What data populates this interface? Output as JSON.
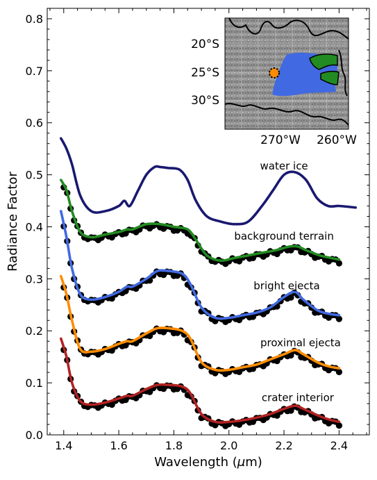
{
  "chart_data": {
    "type": "line",
    "xlabel_main": "Wavelength (",
    "xlabel_mu": "μ",
    "xlabel_unit": "m)",
    "ylabel": "Radiance Factor",
    "xlim": [
      1.34,
      2.51
    ],
    "ylim": [
      0.0,
      0.82
    ],
    "x_ticks": [
      "1.4",
      "1.6",
      "1.8",
      "2.0",
      "2.2",
      "2.4"
    ],
    "y_ticks": [
      "0.0",
      "0.1",
      "0.2",
      "0.3",
      "0.4",
      "0.5",
      "0.6",
      "0.7",
      "0.8"
    ],
    "grid": false,
    "series": [
      {
        "name": "water ice",
        "color": "#191970",
        "label_x": 2.2,
        "label_y": 0.51,
        "has_points": false,
        "x": [
          1.39,
          1.41,
          1.43,
          1.46,
          1.5,
          1.55,
          1.6,
          1.62,
          1.64,
          1.67,
          1.7,
          1.73,
          1.75,
          1.78,
          1.82,
          1.85,
          1.88,
          1.92,
          1.97,
          2.02,
          2.07,
          2.12,
          2.16,
          2.2,
          2.24,
          2.28,
          2.32,
          2.36,
          2.4,
          2.46
        ],
        "y": [
          0.57,
          0.55,
          0.52,
          0.46,
          0.43,
          0.43,
          0.44,
          0.45,
          0.44,
          0.47,
          0.5,
          0.515,
          0.515,
          0.513,
          0.51,
          0.49,
          0.45,
          0.42,
          0.41,
          0.405,
          0.41,
          0.44,
          0.47,
          0.5,
          0.505,
          0.49,
          0.455,
          0.44,
          0.44,
          0.437
        ]
      },
      {
        "name": "background terrain",
        "color": "#228b22",
        "label_x": 2.2,
        "label_y": 0.375,
        "has_points": true,
        "x": [
          1.39,
          1.41,
          1.43,
          1.46,
          1.5,
          1.55,
          1.6,
          1.63,
          1.65,
          1.7,
          1.75,
          1.8,
          1.85,
          1.88,
          1.92,
          1.97,
          2.02,
          2.07,
          2.12,
          2.17,
          2.22,
          2.25,
          2.28,
          2.33,
          2.37,
          2.4
        ],
        "y": [
          0.49,
          0.47,
          0.43,
          0.39,
          0.38,
          0.385,
          0.39,
          0.395,
          0.395,
          0.405,
          0.405,
          0.4,
          0.395,
          0.375,
          0.345,
          0.335,
          0.34,
          0.345,
          0.35,
          0.355,
          0.362,
          0.362,
          0.355,
          0.345,
          0.34,
          0.337
        ]
      },
      {
        "name": "bright ejecta",
        "color": "#4169e1",
        "label_x": 2.21,
        "label_y": 0.28,
        "has_points": true,
        "x": [
          1.39,
          1.41,
          1.43,
          1.46,
          1.5,
          1.55,
          1.6,
          1.63,
          1.65,
          1.7,
          1.74,
          1.78,
          1.83,
          1.86,
          1.9,
          1.95,
          2.0,
          2.05,
          2.1,
          2.15,
          2.2,
          2.24,
          2.27,
          2.32,
          2.36,
          2.4
        ],
        "y": [
          0.43,
          0.38,
          0.32,
          0.27,
          0.26,
          0.265,
          0.275,
          0.285,
          0.285,
          0.3,
          0.315,
          0.315,
          0.31,
          0.29,
          0.245,
          0.225,
          0.225,
          0.23,
          0.235,
          0.245,
          0.265,
          0.275,
          0.26,
          0.24,
          0.233,
          0.23
        ]
      },
      {
        "name": "proximal ejecta",
        "color": "#ff8c00",
        "label_x": 2.26,
        "label_y": 0.17,
        "has_points": true,
        "x": [
          1.39,
          1.41,
          1.43,
          1.46,
          1.5,
          1.55,
          1.6,
          1.63,
          1.65,
          1.7,
          1.74,
          1.78,
          1.83,
          1.86,
          1.9,
          1.95,
          2.0,
          2.05,
          2.1,
          2.15,
          2.2,
          2.24,
          2.27,
          2.32,
          2.36,
          2.4
        ],
        "y": [
          0.305,
          0.27,
          0.22,
          0.165,
          0.16,
          0.165,
          0.175,
          0.18,
          0.18,
          0.195,
          0.205,
          0.205,
          0.2,
          0.185,
          0.14,
          0.125,
          0.125,
          0.13,
          0.135,
          0.145,
          0.155,
          0.163,
          0.155,
          0.14,
          0.132,
          0.128
        ]
      },
      {
        "name": "crater interior",
        "color": "#b22222",
        "label_x": 2.25,
        "label_y": 0.065,
        "has_points": true,
        "x": [
          1.39,
          1.41,
          1.43,
          1.46,
          1.5,
          1.55,
          1.6,
          1.63,
          1.65,
          1.7,
          1.74,
          1.78,
          1.83,
          1.86,
          1.9,
          1.95,
          2.0,
          2.05,
          2.1,
          2.15,
          2.2,
          2.24,
          2.27,
          2.32,
          2.36,
          2.4
        ],
        "y": [
          0.185,
          0.15,
          0.1,
          0.065,
          0.058,
          0.062,
          0.07,
          0.075,
          0.075,
          0.088,
          0.096,
          0.096,
          0.093,
          0.08,
          0.04,
          0.025,
          0.025,
          0.028,
          0.033,
          0.04,
          0.05,
          0.056,
          0.05,
          0.038,
          0.03,
          0.025
        ]
      }
    ],
    "inset": {
      "lat_labels": [
        "20°S",
        "25°S",
        "30°S"
      ],
      "lon_labels": [
        "270°W",
        "260°W"
      ],
      "colors": {
        "ejecta": "#4169e1",
        "terrain": "#228b22",
        "crater": "#ff8c00",
        "outline": "#000000"
      }
    }
  }
}
